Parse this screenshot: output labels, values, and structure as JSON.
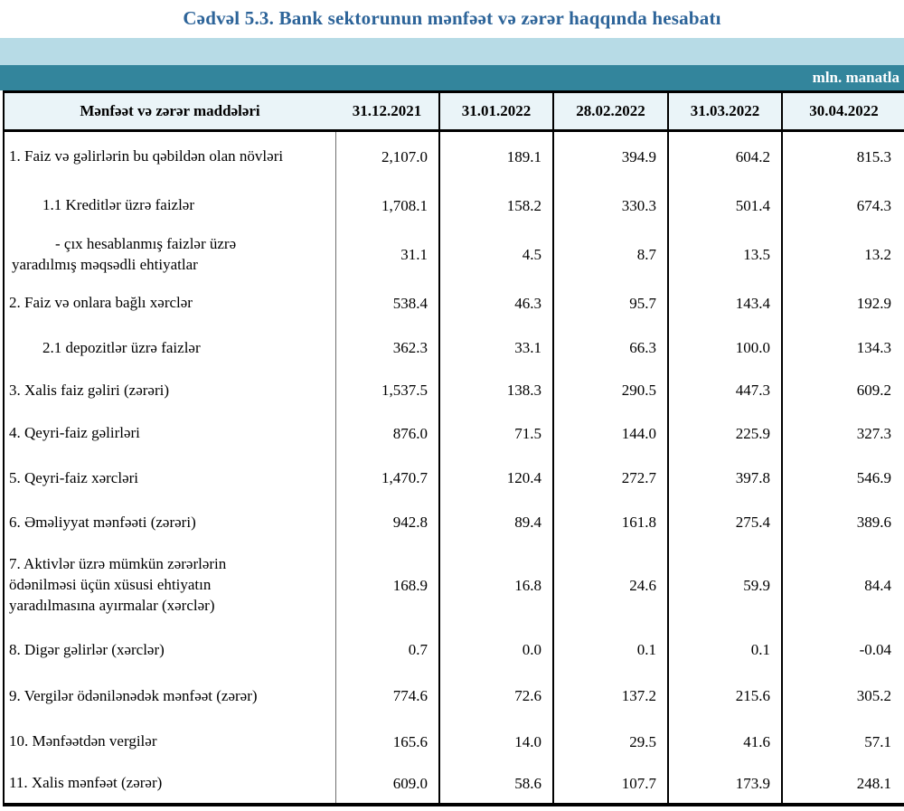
{
  "title": "Cədvəl 5.3. Bank sektorunun mənfəət və zərər haqqında hesabatı",
  "unit_label": "mln. manatla",
  "colors": {
    "title_text": "#2d6499",
    "band_light": "#b7dbe6",
    "band_teal": "#33859c",
    "header_bg": "#eaf4f8",
    "border": "#000000"
  },
  "table": {
    "header": {
      "items_label": "Mənfəət və zərər maddələri",
      "dates": [
        "31.12.2021",
        "31.01.2022",
        "28.02.2022",
        "31.03.2022",
        "30.04.2022"
      ]
    },
    "rows": [
      {
        "label": "1. Faiz və gəlirlərin bu qəbildən olan növləri",
        "values": [
          "2,107.0",
          "189.1",
          "394.9",
          "604.2",
          "815.3"
        ]
      },
      {
        "label": "1.1 Kreditlər üzrə faizlər",
        "values": [
          "1,708.1",
          "158.2",
          "330.3",
          "501.4",
          "674.3"
        ]
      },
      {
        "label": "-  çıx hesablanmış faizlər üzrə\nyaradılmış məqsədli ehtiyatlar",
        "values": [
          "31.1",
          "4.5",
          "8.7",
          "13.5",
          "13.2"
        ]
      },
      {
        "label": "2. Faiz və onlara bağlı xərclər",
        "values": [
          "538.4",
          "46.3",
          "95.7",
          "143.4",
          "192.9"
        ]
      },
      {
        "label": "2.1 depozitlər üzrə faizlər",
        "values": [
          "362.3",
          "33.1",
          "66.3",
          "100.0",
          "134.3"
        ]
      },
      {
        "label": "3. Xalis faiz gəliri (zərəri)",
        "values": [
          "1,537.5",
          "138.3",
          "290.5",
          "447.3",
          "609.2"
        ]
      },
      {
        "label": "4. Qeyri-faiz gəlirləri",
        "values": [
          "876.0",
          "71.5",
          "144.0",
          "225.9",
          "327.3"
        ]
      },
      {
        "label": "5. Qeyri-faiz xərcləri",
        "values": [
          "1,470.7",
          "120.4",
          "272.7",
          "397.8",
          "546.9"
        ]
      },
      {
        "label": "6. Əməliyyat mənfəəti (zərəri)",
        "values": [
          "942.8",
          "89.4",
          "161.8",
          "275.4",
          "389.6"
        ]
      },
      {
        "label": "7. Aktivlər üzrə mümkün zərərlərin\nödənilməsi üçün xüsusi ehtiyatın\nyaradılmasına ayırmalar (xərclər)",
        "values": [
          "168.9",
          "16.8",
          "24.6",
          "59.9",
          "84.4"
        ]
      },
      {
        "label": "8. Digər gəlirlər (xərclər)",
        "values": [
          "0.7",
          "0.0",
          "0.1",
          "0.1",
          "-0.04"
        ]
      },
      {
        "label": "9. Vergilər ödənilənədək mənfəət (zərər)",
        "values": [
          "774.6",
          "72.6",
          "137.2",
          "215.6",
          "305.2"
        ]
      },
      {
        "label": "10. Mənfəətdən vergilər",
        "values": [
          "165.6",
          "14.0",
          "29.5",
          "41.6",
          "57.1"
        ]
      },
      {
        "label": "11. Xalis mənfəət (zərər)",
        "values": [
          "609.0",
          "58.6",
          "107.7",
          "173.9",
          "248.1"
        ]
      }
    ]
  }
}
